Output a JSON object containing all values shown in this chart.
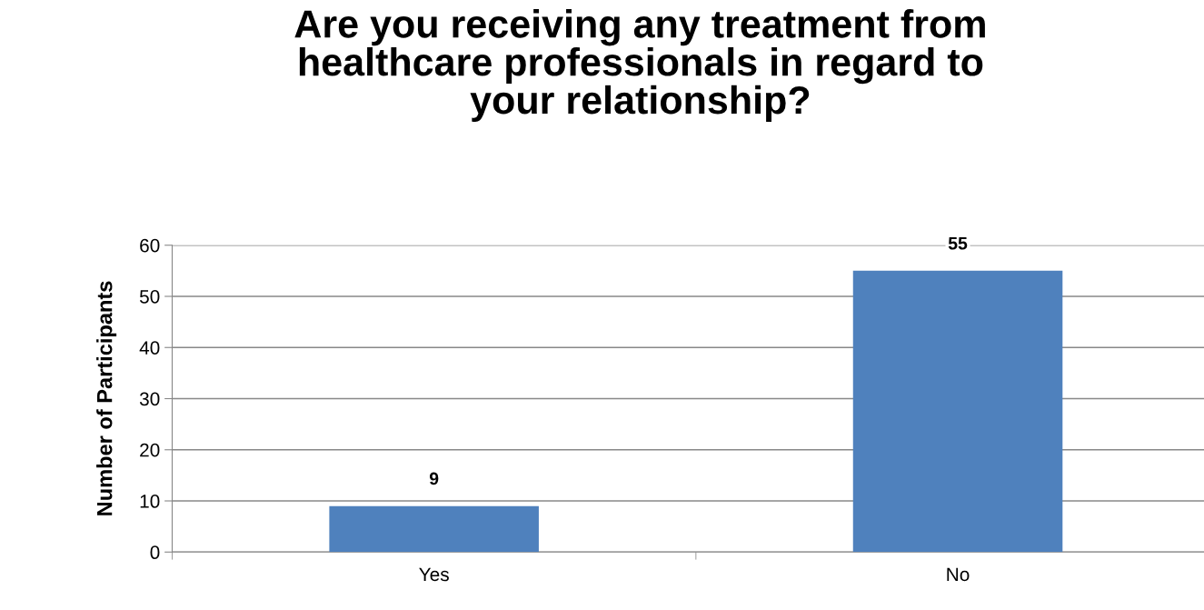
{
  "chart_data": {
    "type": "bar",
    "title": "Are you receiving any treatment from\nhealthcare professionals in regard to\nyour relationship?",
    "ylabel": "Number of Participants",
    "categories": [
      "Yes",
      "No"
    ],
    "values": [
      9,
      55
    ],
    "color": "#4f81bd",
    "ylim": [
      0,
      60
    ],
    "yticks": [
      0,
      10,
      20,
      30,
      40,
      50,
      60
    ],
    "grid": "y",
    "data_labels": true
  }
}
